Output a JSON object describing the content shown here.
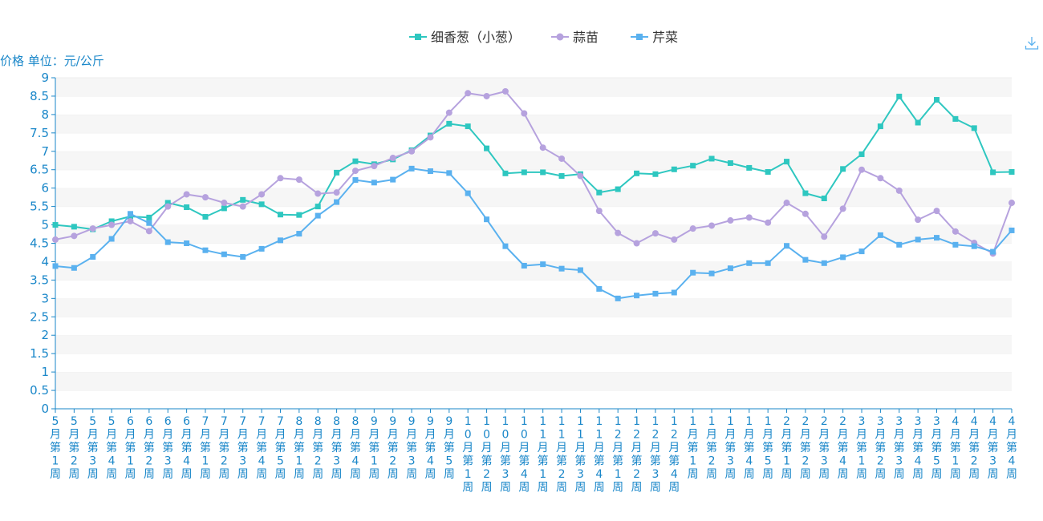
{
  "chart_data": {
    "type": "line",
    "ylabel": "价格 单位：元/公斤",
    "ylim": [
      0,
      9
    ],
    "yticks": [
      "0",
      "0.5",
      "1",
      "1.5",
      "2",
      "2.5",
      "3",
      "3.5",
      "4",
      "4.5",
      "5",
      "5.5",
      "6",
      "6.5",
      "7",
      "7.5",
      "8",
      "8.5",
      "9"
    ],
    "grid": "horizontal bands",
    "legend_position": "top-center",
    "categories": [
      "5月第1周",
      "5月第2周",
      "5月第3周",
      "5月第4周",
      "6月第1周",
      "6月第2周",
      "6月第3周",
      "6月第4周",
      "7月第1周",
      "7月第2周",
      "7月第3周",
      "7月第4周",
      "7月第5周",
      "8月第1周",
      "8月第2周",
      "8月第3周",
      "8月第4周",
      "9月第1周",
      "9月第2周",
      "9月第3周",
      "9月第4周",
      "9月第5周",
      "10月第1周",
      "10月第2周",
      "10月第3周",
      "10月第4周",
      "11月第1周",
      "11月第2周",
      "11月第3周",
      "11月第4周",
      "12月第1周",
      "12月第2周",
      "12月第3周",
      "12月第4周",
      "1月第1周",
      "1月第2周",
      "1月第3周",
      "1月第4周",
      "1月第5周",
      "2月第1周",
      "2月第2周",
      "2月第3周",
      "2月第4周",
      "3月第1周",
      "3月第2周",
      "3月第3周",
      "3月第4周",
      "3月第5周",
      "4月第1周",
      "4月第2周",
      "4月第3周",
      "4月第4周"
    ],
    "series": [
      {
        "name": "细香葱（小葱）",
        "color": "#2ec7c0",
        "marker": "square",
        "values": [
          5.0,
          4.95,
          4.88,
          5.1,
          5.23,
          5.2,
          5.6,
          5.48,
          5.22,
          5.45,
          5.68,
          5.56,
          5.28,
          5.27,
          5.5,
          6.42,
          6.73,
          6.65,
          6.78,
          7.03,
          7.43,
          7.75,
          7.68,
          7.08,
          6.4,
          6.43,
          6.43,
          6.33,
          6.38,
          5.88,
          5.97,
          6.4,
          6.38,
          6.51,
          6.61,
          6.8,
          6.68,
          6.55,
          6.44,
          6.72,
          5.86,
          5.72,
          6.52,
          6.92,
          7.68,
          8.49,
          7.78,
          8.4,
          7.88,
          7.63,
          6.43,
          6.44
        ]
      },
      {
        "name": "蒜苗",
        "color": "#b6a2de",
        "marker": "circle",
        "values": [
          4.6,
          4.7,
          4.9,
          5.0,
          5.1,
          4.83,
          5.5,
          5.83,
          5.75,
          5.6,
          5.5,
          5.83,
          6.27,
          6.23,
          5.85,
          5.88,
          6.47,
          6.6,
          6.82,
          7.0,
          7.38,
          8.05,
          8.58,
          8.5,
          8.63,
          8.03,
          7.1,
          6.8,
          6.33,
          5.38,
          4.78,
          4.5,
          4.77,
          4.6,
          4.9,
          4.98,
          5.12,
          5.2,
          5.06,
          5.6,
          5.3,
          4.68,
          5.44,
          6.5,
          6.27,
          5.93,
          5.14,
          5.38,
          4.82,
          4.51,
          4.22,
          5.6
        ]
      },
      {
        "name": "芹菜",
        "color": "#5ab1ef",
        "marker": "square",
        "values": [
          3.88,
          3.83,
          4.13,
          4.62,
          5.3,
          5.05,
          4.53,
          4.5,
          4.31,
          4.2,
          4.13,
          4.35,
          4.58,
          4.76,
          5.25,
          5.62,
          6.22,
          6.15,
          6.23,
          6.53,
          6.46,
          6.41,
          5.86,
          5.15,
          4.42,
          3.89,
          3.93,
          3.81,
          3.77,
          3.26,
          3.0,
          3.08,
          3.13,
          3.16,
          3.7,
          3.68,
          3.82,
          3.96,
          3.96,
          4.43,
          4.05,
          3.96,
          4.12,
          4.28,
          4.72,
          4.46,
          4.6,
          4.65,
          4.46,
          4.42,
          4.27,
          4.85
        ]
      }
    ]
  },
  "toolbar": {
    "download_icon": "download-icon"
  }
}
